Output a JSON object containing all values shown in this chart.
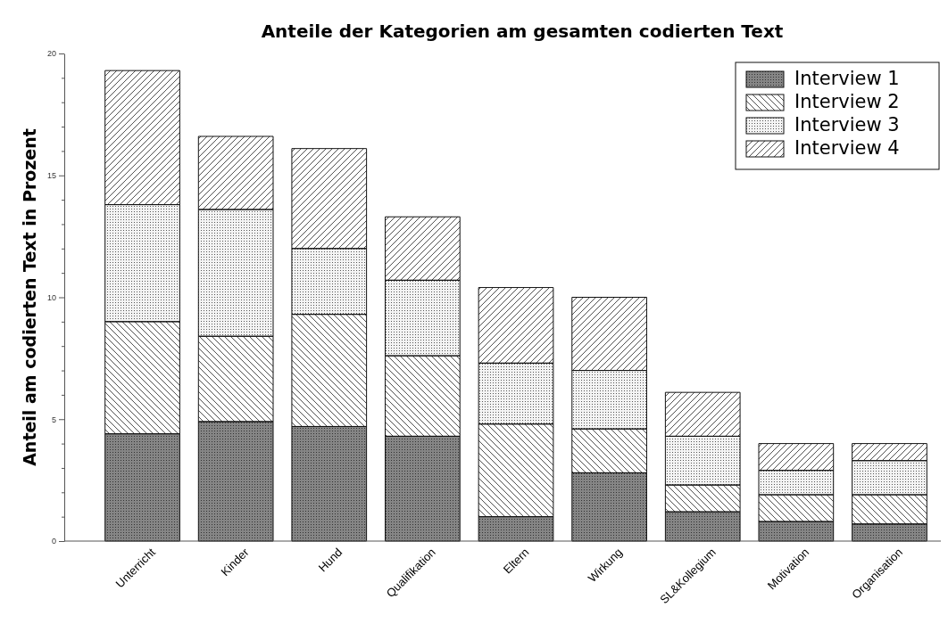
{
  "chart_data": {
    "type": "bar",
    "title": "Anteile der Kategorien am gesamten codierten Text",
    "ylabel": "Anteil am codierten Text in Prozent",
    "categories": [
      "Unterricht",
      "Kinder",
      "Hund",
      "Qualifikation",
      "Eltern",
      "Wirkung",
      "SL&Kollegium",
      "Motivation",
      "Organisation"
    ],
    "stacked": true,
    "legend": "top right",
    "ylim": [
      0,
      20
    ],
    "yticks": [
      0,
      {
        "value": 1,
        "label": null
      },
      {
        "value": 2,
        "label": null
      },
      {
        "value": 3,
        "label": null
      },
      {
        "value": 4,
        "label": null
      },
      5,
      {
        "value": 6,
        "label": null
      },
      {
        "value": 7,
        "label": null
      },
      {
        "value": 8,
        "label": null
      },
      {
        "value": 9,
        "label": null
      },
      10,
      {
        "value": 11,
        "label": null
      },
      {
        "value": 12,
        "label": null
      },
      {
        "value": 13,
        "label": null
      },
      {
        "value": 14,
        "label": null
      },
      15,
      {
        "value": 16,
        "label": null
      },
      {
        "value": 17,
        "label": null
      },
      {
        "value": 18,
        "label": null
      },
      {
        "value": 19,
        "label": null
      },
      20
    ],
    "series": [
      {
        "name": "Interview 1",
        "color": "#858585",
        "values": [
          4.4,
          4.9,
          4.7,
          4.3,
          1.0,
          2.8,
          1.2,
          0.8,
          0.7
        ]
      },
      {
        "name": "Interview 2",
        "color": "#ffffff",
        "values": [
          4.6,
          3.5,
          4.6,
          3.3,
          3.8,
          1.8,
          1.1,
          1.1,
          1.2
        ]
      },
      {
        "name": "Interview 3",
        "color": "#f4f4f4",
        "values": [
          4.8,
          5.2,
          2.7,
          3.1,
          2.5,
          2.4,
          2.0,
          1.0,
          1.4
        ]
      },
      {
        "name": "Interview 4",
        "color": "#ffffff",
        "values": [
          5.5,
          3.0,
          4.1,
          2.6,
          3.1,
          3.0,
          1.8,
          1.1,
          0.7
        ]
      }
    ]
  }
}
